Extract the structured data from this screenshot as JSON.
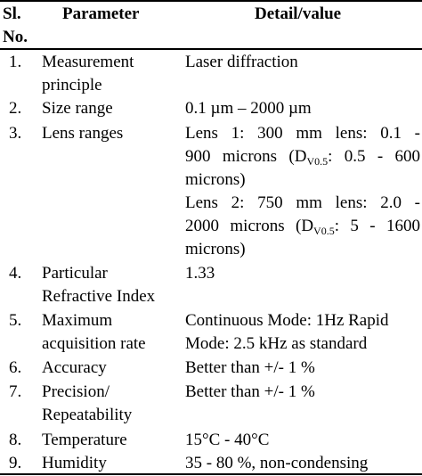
{
  "table": {
    "header": {
      "sl_line1": "Sl.",
      "sl_line2": "No.",
      "parameter": "Parameter",
      "detail": "Detail/value"
    },
    "rows": [
      {
        "no": "1.",
        "param": [
          "Measurement",
          "principle"
        ],
        "detail": [
          "Laser diffraction"
        ]
      },
      {
        "no": "2.",
        "param": [
          "Size range"
        ],
        "detail": [
          "0.1 µm – 2000 µm"
        ]
      },
      {
        "no": "3.",
        "param": [
          "Lens ranges"
        ],
        "lens1": {
          "line1": "Lens 1: 300 mm lens: 0.1 -",
          "line2_pre": "900 microns (D",
          "line2_sub": "V0.5",
          "line2_post": ": 0.5 - 600",
          "line3": "microns)"
        },
        "lens2": {
          "line1": "Lens 2: 750 mm lens: 2.0 -",
          "line2_pre": "2000 microns (D",
          "line2_sub": "V0.5",
          "line2_post": ": 5 - 1600",
          "line3": "microns)"
        }
      },
      {
        "no": "4.",
        "param": [
          "Particular",
          "Refractive Index"
        ],
        "detail": [
          "1.33"
        ]
      },
      {
        "no": "5.",
        "param": [
          "Maximum",
          "acquisition rate"
        ],
        "detail": [
          "Continuous Mode: 1Hz Rapid",
          "Mode: 2.5 kHz as standard"
        ]
      },
      {
        "no": "6.",
        "param": [
          "Accuracy"
        ],
        "detail": [
          "Better than +/- 1 %"
        ]
      },
      {
        "no": "7.",
        "param": [
          "Precision/",
          "Repeatability"
        ],
        "detail": [
          "Better than +/- 1 %"
        ]
      },
      {
        "no": "8.",
        "param": [
          "Temperature"
        ],
        "detail": [
          "15°C - 40°C"
        ]
      },
      {
        "no": "9.",
        "param": [
          "Humidity"
        ],
        "detail": [
          "35 - 80 %, non-condensing"
        ]
      }
    ]
  }
}
